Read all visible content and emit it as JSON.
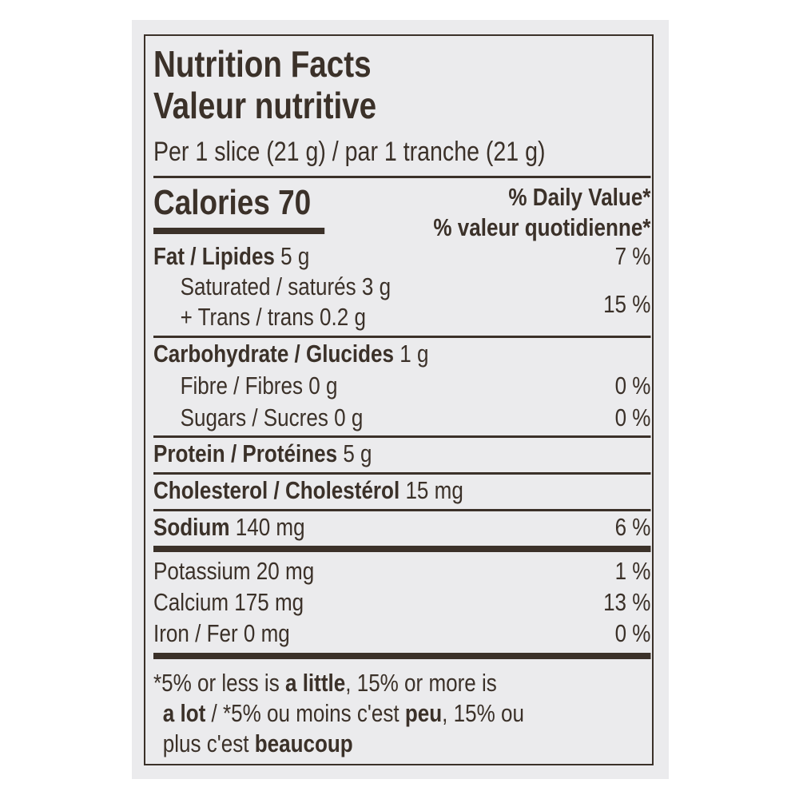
{
  "header": {
    "title_en": "Nutrition Facts",
    "title_fr": "Valeur nutritive",
    "serving": "Per 1 slice (21 g) / par 1 tranche (21 g)"
  },
  "calories": {
    "label": "Calories 70",
    "dv_en": "% Daily Value*",
    "dv_fr": "% valeur quotidienne*"
  },
  "nutrients": {
    "fat": {
      "label": "Fat / Lipides",
      "amount": "5 g",
      "dv": "7 %"
    },
    "saturated": {
      "label": "Saturated / saturés",
      "amount": "3 g"
    },
    "trans": {
      "label": "+ Trans / trans",
      "amount": "0.2 g"
    },
    "sat_trans_dv": "15 %",
    "carb": {
      "label": "Carbohydrate / Glucides",
      "amount": "1 g"
    },
    "fibre": {
      "label": "Fibre / Fibres",
      "amount": "0 g",
      "dv": "0 %"
    },
    "sugars": {
      "label": "Sugars / Sucres",
      "amount": "0 g",
      "dv": "0 %"
    },
    "protein": {
      "label": "Protein / Protéines",
      "amount": "5 g"
    },
    "cholesterol": {
      "label": "Cholesterol / Cholestérol",
      "amount": "15 mg"
    },
    "sodium": {
      "label": "Sodium",
      "amount": "140 mg",
      "dv": "6 %"
    },
    "potassium": {
      "label": "Potassium 20 mg",
      "dv": "1 %"
    },
    "calcium": {
      "label": "Calcium 175 mg",
      "dv": "13 %"
    },
    "iron": {
      "label": "Iron / Fer 0 mg",
      "dv": "0 %"
    }
  },
  "footnote": {
    "p1": "*5% or less is ",
    "b1": "a little",
    "p2": ", 15% or more is",
    "b2": "a lot",
    "p3": " / *5% ou moins c'est ",
    "b3": "peu",
    "p4": ", 15% ou",
    "p5": "plus c'est ",
    "b4": "beaucoup"
  }
}
